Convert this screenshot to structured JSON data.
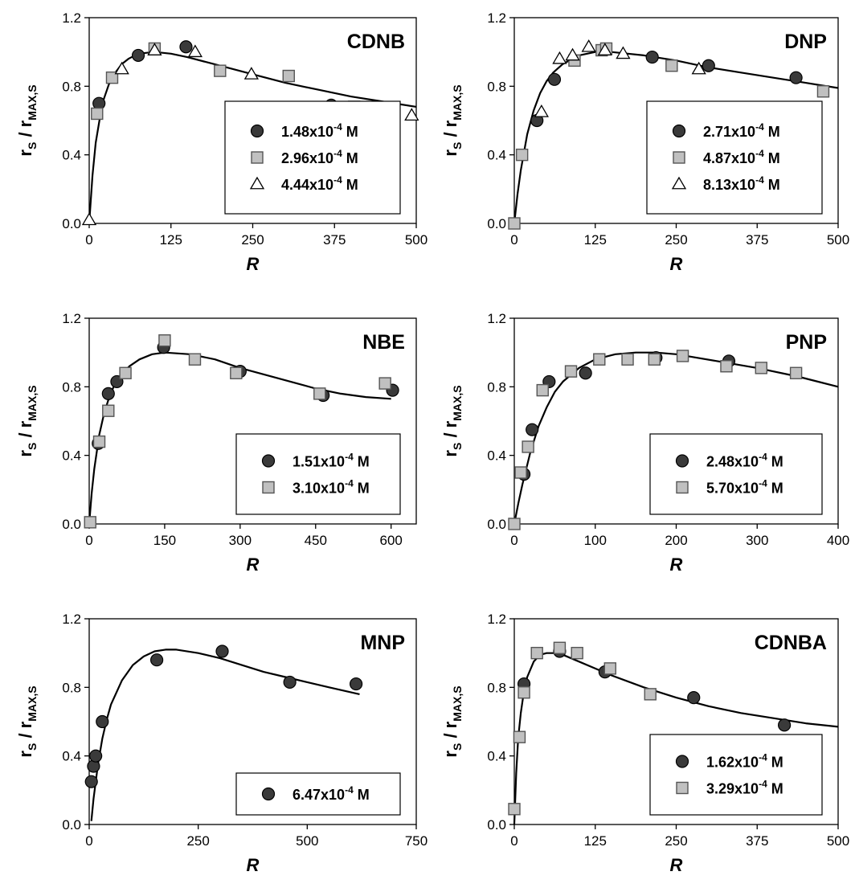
{
  "chart_data": [
    {
      "type": "scatter",
      "title": "CDNB",
      "xlabel": "R",
      "ylabel": {
        "main1": "r",
        "sub1": "S",
        "sep": " / r",
        "sub2": "MAX,S"
      },
      "xlim": [
        0,
        500
      ],
      "ylim": [
        0.0,
        1.2
      ],
      "xticks": [
        "0",
        "125",
        "250",
        "375",
        "500"
      ],
      "yticks": [
        "0.0",
        "0.4",
        "0.8",
        "1.2"
      ],
      "legend_position": "bottom-right",
      "series": [
        {
          "name": {
            "base": "1.48x10",
            "exp": "-4",
            "unit": " M"
          },
          "marker": "circle",
          "x": [
            15,
            75,
            148,
            370
          ],
          "y": [
            0.7,
            0.98,
            1.03,
            0.69
          ]
        },
        {
          "name": {
            "base": "2.96x10",
            "exp": "-4",
            "unit": " M"
          },
          "marker": "square",
          "x": [
            12,
            35,
            100,
            200,
            305,
            405
          ],
          "y": [
            0.64,
            0.85,
            1.02,
            0.89,
            0.86,
            0.68
          ]
        },
        {
          "name": {
            "base": "4.44x10",
            "exp": "-4",
            "unit": " M"
          },
          "marker": "triangle",
          "x": [
            0,
            50,
            100,
            162,
            248,
            493
          ],
          "y": [
            0.02,
            0.9,
            1.01,
            1.0,
            0.87,
            0.63
          ]
        }
      ],
      "fit_curve": {
        "x": [
          0,
          5,
          10,
          20,
          30,
          40,
          50,
          60,
          75,
          100,
          125,
          150,
          200,
          250,
          300,
          350,
          400,
          450,
          500
        ],
        "y": [
          0.0,
          0.28,
          0.47,
          0.7,
          0.81,
          0.88,
          0.93,
          0.96,
          0.99,
          1.0,
          0.99,
          0.97,
          0.92,
          0.87,
          0.82,
          0.78,
          0.74,
          0.71,
          0.68
        ]
      }
    },
    {
      "type": "scatter",
      "title": "DNP",
      "xlabel": "R",
      "ylabel": {
        "main1": "r",
        "sub1": "S",
        "sep": " / r",
        "sub2": "MAX,S"
      },
      "xlim": [
        0,
        500
      ],
      "ylim": [
        0.0,
        1.2
      ],
      "xticks": [
        "0",
        "125",
        "250",
        "375",
        "500"
      ],
      "yticks": [
        "0.0",
        "0.4",
        "0.8",
        "1.2"
      ],
      "legend_position": "bottom-right",
      "series": [
        {
          "name": {
            "base": "2.71x10",
            "exp": "-4",
            "unit": " M"
          },
          "marker": "circle",
          "x": [
            35,
            62,
            213,
            300,
            435
          ],
          "y": [
            0.6,
            0.84,
            0.97,
            0.92,
            0.85
          ]
        },
        {
          "name": {
            "base": "4.87x10",
            "exp": "-4",
            "unit": " M"
          },
          "marker": "square",
          "x": [
            0,
            12,
            93,
            135,
            142,
            243,
            477
          ],
          "y": [
            0.0,
            0.4,
            0.95,
            1.01,
            1.02,
            0.92,
            0.77
          ]
        },
        {
          "name": {
            "base": "8.13x10",
            "exp": "-4",
            "unit": " M"
          },
          "marker": "triangle",
          "x": [
            42,
            70,
            90,
            115,
            140,
            168,
            285
          ],
          "y": [
            0.65,
            0.96,
            0.98,
            1.03,
            1.01,
            0.99,
            0.9
          ]
        }
      ],
      "fit_curve": {
        "x": [
          0,
          5,
          10,
          20,
          30,
          40,
          50,
          60,
          75,
          100,
          125,
          150,
          200,
          250,
          300,
          350,
          400,
          450,
          500
        ],
        "y": [
          0.0,
          0.17,
          0.31,
          0.52,
          0.66,
          0.76,
          0.83,
          0.88,
          0.93,
          0.98,
          1.0,
          1.0,
          0.98,
          0.95,
          0.91,
          0.88,
          0.85,
          0.82,
          0.79
        ]
      }
    },
    {
      "type": "scatter",
      "title": "NBE",
      "xlabel": "R",
      "ylabel": {
        "main1": "r",
        "sub1": "S",
        "sep": " / r",
        "sub2": "MAX,S"
      },
      "xlim": [
        0,
        650
      ],
      "ylim": [
        0.0,
        1.2
      ],
      "xticks": [
        "0",
        "150",
        "300",
        "450",
        "600"
      ],
      "xtick_values": [
        0,
        150,
        300,
        450,
        600
      ],
      "yticks": [
        "0.0",
        "0.4",
        "0.8",
        "1.2"
      ],
      "legend_position": "bottom-right",
      "series": [
        {
          "name": {
            "base": "1.51x10",
            "exp": "-4",
            "unit": " M"
          },
          "marker": "circle",
          "x": [
            18,
            38,
            55,
            148,
            300,
            465,
            603
          ],
          "y": [
            0.47,
            0.76,
            0.83,
            1.03,
            0.89,
            0.75,
            0.78
          ]
        },
        {
          "name": {
            "base": "3.10x10",
            "exp": "-4",
            "unit": " M"
          },
          "marker": "square",
          "x": [
            2,
            20,
            38,
            72,
            150,
            210,
            292,
            458,
            588
          ],
          "y": [
            0.01,
            0.48,
            0.66,
            0.88,
            1.07,
            0.96,
            0.88,
            0.76,
            0.82
          ]
        }
      ],
      "fit_curve": {
        "x": [
          0,
          5,
          10,
          20,
          30,
          40,
          50,
          60,
          80,
          100,
          125,
          150,
          200,
          250,
          300,
          350,
          400,
          450,
          500,
          550,
          600
        ],
        "y": [
          0.0,
          0.18,
          0.32,
          0.52,
          0.65,
          0.74,
          0.81,
          0.86,
          0.92,
          0.96,
          0.99,
          1.0,
          0.99,
          0.96,
          0.91,
          0.87,
          0.83,
          0.79,
          0.76,
          0.74,
          0.73
        ]
      }
    },
    {
      "type": "scatter",
      "title": "PNP",
      "xlabel": "R",
      "ylabel": {
        "main1": "r",
        "sub1": "S",
        "sep": " / r",
        "sub2": "MAX,S"
      },
      "xlim": [
        0,
        400
      ],
      "ylim": [
        0.0,
        1.2
      ],
      "xticks": [
        "0",
        "100",
        "200",
        "300",
        "400"
      ],
      "xtick_values": [
        0,
        100,
        200,
        300,
        400
      ],
      "yticks": [
        "0.0",
        "0.4",
        "0.8",
        "1.2"
      ],
      "legend_position": "bottom-right",
      "series": [
        {
          "name": {
            "base": "2.48x10",
            "exp": "-4",
            "unit": " M"
          },
          "marker": "circle",
          "x": [
            12,
            22,
            43,
            88,
            175,
            265
          ],
          "y": [
            0.29,
            0.55,
            0.83,
            0.88,
            0.97,
            0.95
          ]
        },
        {
          "name": {
            "base": "5.70x10",
            "exp": "-4",
            "unit": " M"
          },
          "marker": "square",
          "x": [
            0,
            8,
            17,
            35,
            70,
            105,
            140,
            173,
            208,
            262,
            305,
            348
          ],
          "y": [
            0.0,
            0.3,
            0.45,
            0.78,
            0.89,
            0.96,
            0.96,
            0.96,
            0.98,
            0.92,
            0.91,
            0.88
          ]
        }
      ],
      "fit_curve": {
        "x": [
          0,
          5,
          10,
          20,
          30,
          40,
          50,
          60,
          80,
          100,
          125,
          150,
          175,
          200,
          250,
          300,
          350,
          400
        ],
        "y": [
          0.0,
          0.12,
          0.23,
          0.42,
          0.57,
          0.68,
          0.77,
          0.83,
          0.91,
          0.96,
          0.99,
          1.0,
          1.0,
          0.99,
          0.95,
          0.91,
          0.86,
          0.8
        ]
      }
    },
    {
      "type": "scatter",
      "title": "MNP",
      "xlabel": "R",
      "ylabel": {
        "main1": "r",
        "sub1": "S",
        "sep": " / r",
        "sub2": "MAX,S"
      },
      "xlim": [
        0,
        750
      ],
      "ylim": [
        0.0,
        1.2
      ],
      "xticks": [
        "0",
        "250",
        "500",
        "750"
      ],
      "xtick_values": [
        0,
        250,
        500,
        750
      ],
      "yticks": [
        "0.0",
        "0.4",
        "0.8",
        "1.2"
      ],
      "legend_position": "bottom-right",
      "series": [
        {
          "name": {
            "base": "6.47x10",
            "exp": "-4",
            "unit": " M"
          },
          "marker": "circle",
          "x": [
            5,
            10,
            15,
            30,
            155,
            305,
            460,
            612
          ],
          "y": [
            0.25,
            0.34,
            0.4,
            0.6,
            0.96,
            1.01,
            0.83,
            0.82
          ]
        }
      ],
      "fit_curve": {
        "x": [
          5,
          10,
          20,
          30,
          40,
          50,
          75,
          100,
          125,
          150,
          175,
          200,
          250,
          300,
          350,
          400,
          450,
          500,
          550,
          620
        ],
        "y": [
          0.02,
          0.15,
          0.35,
          0.5,
          0.61,
          0.7,
          0.84,
          0.93,
          0.98,
          1.01,
          1.02,
          1.02,
          1.0,
          0.97,
          0.93,
          0.89,
          0.86,
          0.83,
          0.8,
          0.76
        ]
      }
    },
    {
      "type": "scatter",
      "title": "CDNBA",
      "xlabel": "R",
      "ylabel": {
        "main1": "r",
        "sub1": "S",
        "sep": " / r",
        "sub2": "MAX,S"
      },
      "xlim": [
        0,
        500
      ],
      "ylim": [
        0.0,
        1.2
      ],
      "xticks": [
        "0",
        "125",
        "250",
        "375",
        "500"
      ],
      "yticks": [
        "0.0",
        "0.4",
        "0.8",
        "1.2"
      ],
      "legend_position": "bottom-right",
      "series": [
        {
          "name": {
            "base": "1.62x10",
            "exp": "-4",
            "unit": " M"
          },
          "marker": "circle",
          "x": [
            15,
            70,
            140,
            277,
            417
          ],
          "y": [
            0.82,
            1.01,
            0.89,
            0.74,
            0.58
          ]
        },
        {
          "name": {
            "base": "3.29x10",
            "exp": "-4",
            "unit": " M"
          },
          "marker": "square",
          "x": [
            0,
            8,
            15,
            35,
            70,
            97,
            148,
            210
          ],
          "y": [
            0.09,
            0.51,
            0.77,
            1.0,
            1.03,
            1.0,
            0.91,
            0.76
          ]
        }
      ],
      "fit_curve": {
        "x": [
          0,
          3,
          6,
          10,
          15,
          20,
          30,
          40,
          50,
          60,
          75,
          100,
          125,
          150,
          200,
          250,
          300,
          350,
          400,
          450,
          500
        ],
        "y": [
          0.0,
          0.3,
          0.5,
          0.65,
          0.78,
          0.86,
          0.95,
          0.99,
          1.0,
          1.0,
          0.99,
          0.95,
          0.91,
          0.87,
          0.8,
          0.74,
          0.69,
          0.65,
          0.62,
          0.59,
          0.57
        ]
      }
    }
  ]
}
